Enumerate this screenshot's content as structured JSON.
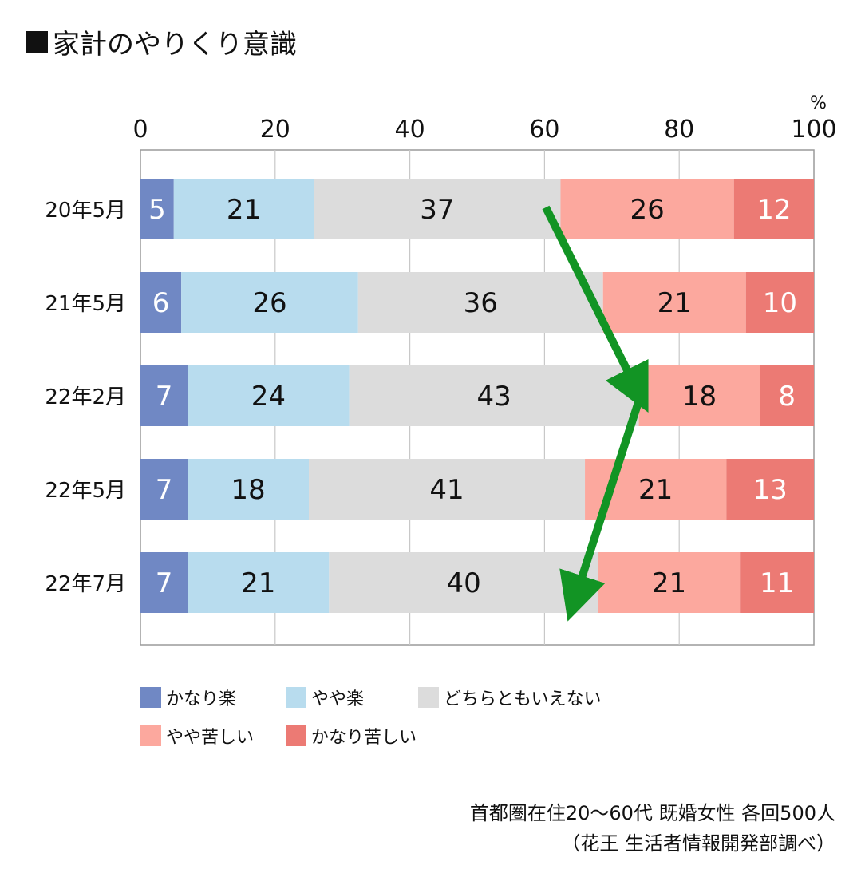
{
  "title": "家計のやりくり意識",
  "chart_data": {
    "type": "bar",
    "orientation": "horizontal",
    "stacked": true,
    "unit_label": "%",
    "xlim": [
      0,
      100
    ],
    "xticks": [
      "0",
      "20",
      "40",
      "60",
      "80",
      "100"
    ],
    "categories": [
      "20年5月",
      "21年5月",
      "22年2月",
      "22年5月",
      "22年7月"
    ],
    "series": [
      {
        "name": "かなり楽",
        "color": "#7088c4",
        "label_color": "#ffffff",
        "values": [
          5,
          6,
          7,
          7,
          7
        ]
      },
      {
        "name": "やや楽",
        "color": "#b8dcee",
        "label_color": "#111111",
        "values": [
          21,
          26,
          24,
          18,
          21
        ]
      },
      {
        "name": "どちらともいえない",
        "color": "#dcdcdc",
        "label_color": "#111111",
        "values": [
          37,
          36,
          43,
          41,
          40
        ]
      },
      {
        "name": "やや苦しい",
        "color": "#fca89e",
        "label_color": "#111111",
        "values": [
          26,
          21,
          18,
          21,
          21
        ]
      },
      {
        "name": "かなり苦しい",
        "color": "#ec7a74",
        "label_color": "#ffffff",
        "values": [
          12,
          10,
          8,
          13,
          11
        ]
      }
    ],
    "grid": true,
    "legend_position": "bottom",
    "arrow_color": "#129424"
  },
  "footnote": {
    "line1": "首都圏在住20〜60代 既婚女性 各回500人",
    "line2": "（花王 生活者情報開発部調べ）"
  }
}
